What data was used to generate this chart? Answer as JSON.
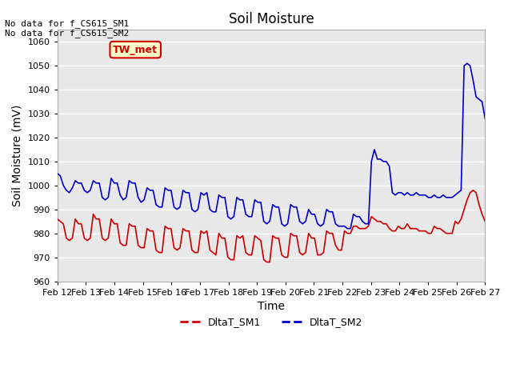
{
  "title": "Soil Moisture",
  "xlabel": "Time",
  "ylabel": "Soil Moisture (mV)",
  "ylim": [
    960,
    1065
  ],
  "yticks": [
    960,
    970,
    980,
    990,
    1000,
    1010,
    1020,
    1030,
    1040,
    1050,
    1060
  ],
  "bg_color": "#e8e8e8",
  "grid_color": "white",
  "annotation_text": "No data for f_CS615_SM1\nNo data for f_CS615_SM2",
  "box_label": "TW_met",
  "box_facecolor": "#ffffcc",
  "box_edgecolor": "#cc0000",
  "box_textcolor": "#cc0000",
  "sm1_color": "#cc0000",
  "sm2_color": "#0000cc",
  "legend_sm1": "DltaT_SM1",
  "legend_sm2": "DltaT_SM2",
  "xtick_labels": [
    "Feb 12",
    "Feb 13",
    "Feb 14",
    "Feb 15",
    "Feb 16",
    "Feb 17",
    "Feb 18",
    "Feb 19",
    "Feb 20",
    "Feb 21",
    "Feb 22",
    "Feb 23",
    "Feb 24",
    "Feb 25",
    "Feb 26",
    "Feb 27"
  ],
  "sm1_data": [
    986,
    985,
    984,
    978,
    977,
    978,
    986,
    984,
    984,
    978,
    977,
    978,
    988,
    986,
    986,
    978,
    977,
    978,
    986,
    984,
    984,
    976,
    975,
    975,
    984,
    983,
    983,
    975,
    974,
    974,
    982,
    981,
    981,
    973,
    972,
    972,
    983,
    982,
    982,
    974,
    973,
    974,
    982,
    981,
    981,
    973,
    972,
    972,
    981,
    980,
    981,
    973,
    972,
    971,
    980,
    978,
    978,
    970,
    969,
    969,
    979,
    978,
    979,
    972,
    971,
    971,
    979,
    978,
    977,
    969,
    968,
    968,
    979,
    978,
    978,
    971,
    970,
    970,
    980,
    979,
    979,
    972,
    971,
    972,
    980,
    978,
    978,
    971,
    971,
    972,
    981,
    980,
    980,
    975,
    973,
    973,
    981,
    980,
    980,
    983,
    983,
    982,
    982,
    982,
    983,
    987,
    986,
    985,
    985,
    984,
    984,
    982,
    981,
    981,
    983,
    982,
    982,
    984,
    982,
    982,
    982,
    981,
    981,
    981,
    980,
    980,
    983,
    982,
    982,
    981,
    980,
    980,
    980,
    985,
    984,
    986,
    990,
    994,
    997,
    998,
    997,
    992,
    988,
    985
  ],
  "sm2_data": [
    1005,
    1004,
    1000,
    998,
    997,
    999,
    1002,
    1001,
    1001,
    998,
    997,
    998,
    1002,
    1001,
    1001,
    995,
    994,
    995,
    1003,
    1001,
    1001,
    996,
    994,
    995,
    1002,
    1001,
    1001,
    995,
    993,
    994,
    999,
    998,
    998,
    992,
    991,
    991,
    999,
    998,
    998,
    991,
    990,
    991,
    998,
    997,
    997,
    990,
    989,
    990,
    997,
    996,
    997,
    990,
    989,
    989,
    996,
    995,
    995,
    987,
    986,
    987,
    995,
    994,
    994,
    988,
    987,
    987,
    994,
    993,
    993,
    985,
    984,
    985,
    992,
    991,
    991,
    984,
    983,
    984,
    992,
    991,
    991,
    985,
    984,
    985,
    990,
    988,
    988,
    984,
    983,
    984,
    990,
    989,
    989,
    984,
    983,
    983,
    983,
    982,
    982,
    988,
    987,
    987,
    985,
    984,
    984,
    1010,
    1015,
    1011,
    1011,
    1010,
    1010,
    1008,
    997,
    996,
    997,
    997,
    996,
    997,
    996,
    996,
    997,
    996,
    996,
    996,
    995,
    995,
    996,
    995,
    995,
    996,
    995,
    995,
    995,
    996,
    997,
    998,
    1050,
    1051,
    1050,
    1044,
    1037,
    1036,
    1035,
    1028
  ]
}
